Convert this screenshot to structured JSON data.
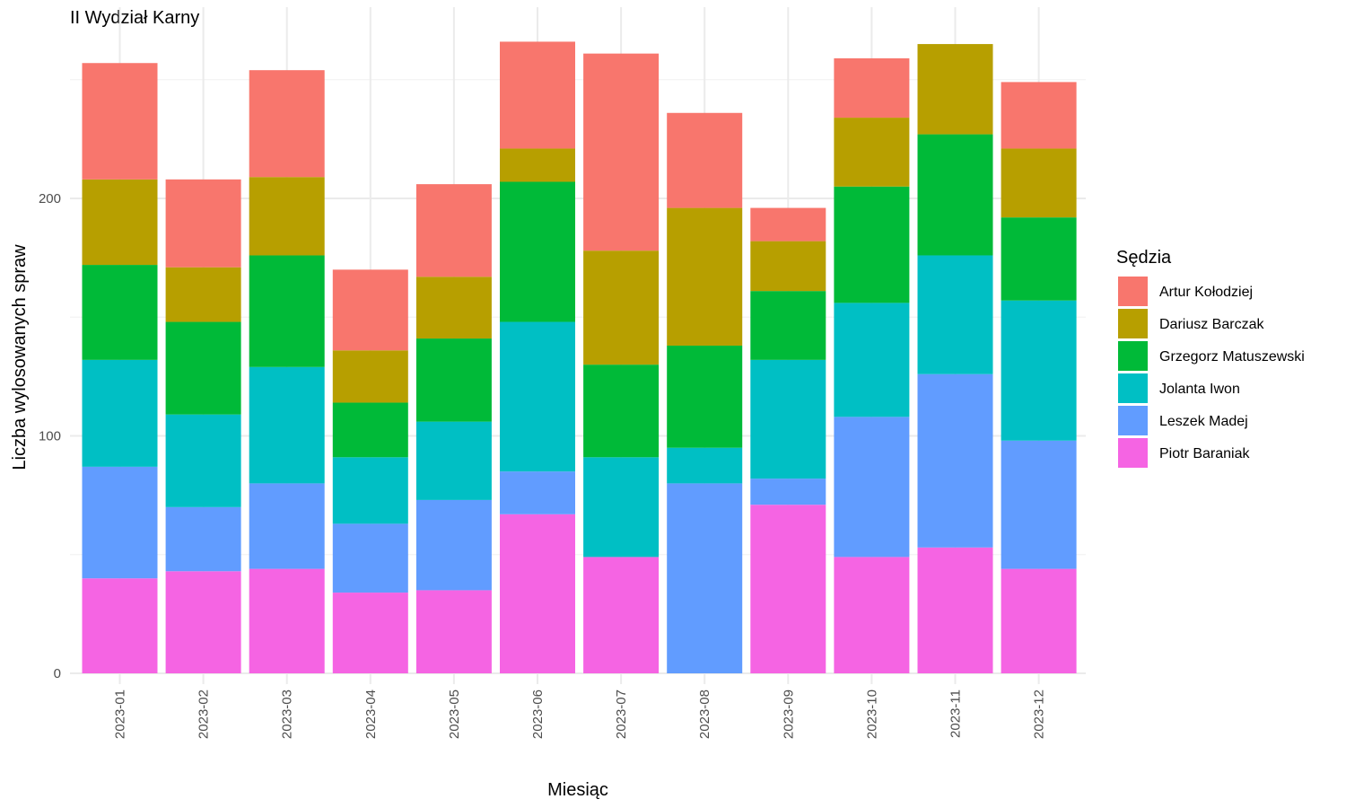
{
  "chart_data": {
    "type": "bar",
    "stacked": true,
    "title": "II Wydział Karny",
    "xlabel": "Miesiąc",
    "ylabel": "Liczba wylosowanych spraw",
    "ylim": [
      0,
      275
    ],
    "yticks": [
      0,
      100,
      200
    ],
    "grid": true,
    "legend": {
      "title": "Sędzia",
      "placement": "right"
    },
    "categories": [
      "2023-01",
      "2023-02",
      "2023-03",
      "2023-04",
      "2023-05",
      "2023-06",
      "2023-07",
      "2023-08",
      "2023-09",
      "2023-10",
      "2023-11",
      "2023-12"
    ],
    "series": [
      {
        "name": "Piotr Baraniak",
        "color": "#F564E3",
        "values": [
          40,
          43,
          44,
          34,
          35,
          67,
          49,
          0,
          71,
          49,
          53,
          44
        ]
      },
      {
        "name": "Leszek Madej",
        "color": "#619CFF",
        "values": [
          47,
          27,
          36,
          29,
          38,
          18,
          0,
          80,
          11,
          59,
          73,
          54
        ]
      },
      {
        "name": "Jolanta Iwon",
        "color": "#00BFC4",
        "values": [
          45,
          39,
          49,
          28,
          33,
          63,
          42,
          15,
          50,
          48,
          50,
          59
        ]
      },
      {
        "name": "Grzegorz Matuszewski",
        "color": "#00BA38",
        "values": [
          40,
          39,
          47,
          23,
          35,
          59,
          39,
          43,
          29,
          49,
          51,
          35
        ]
      },
      {
        "name": "Dariusz Barczak",
        "color": "#B79F00",
        "values": [
          36,
          23,
          33,
          22,
          26,
          14,
          48,
          58,
          21,
          29,
          38,
          29
        ]
      },
      {
        "name": "Artur Kołodziej",
        "color": "#F8766D",
        "values": [
          49,
          37,
          45,
          34,
          39,
          45,
          83,
          40,
          14,
          25,
          0,
          28
        ]
      }
    ]
  }
}
